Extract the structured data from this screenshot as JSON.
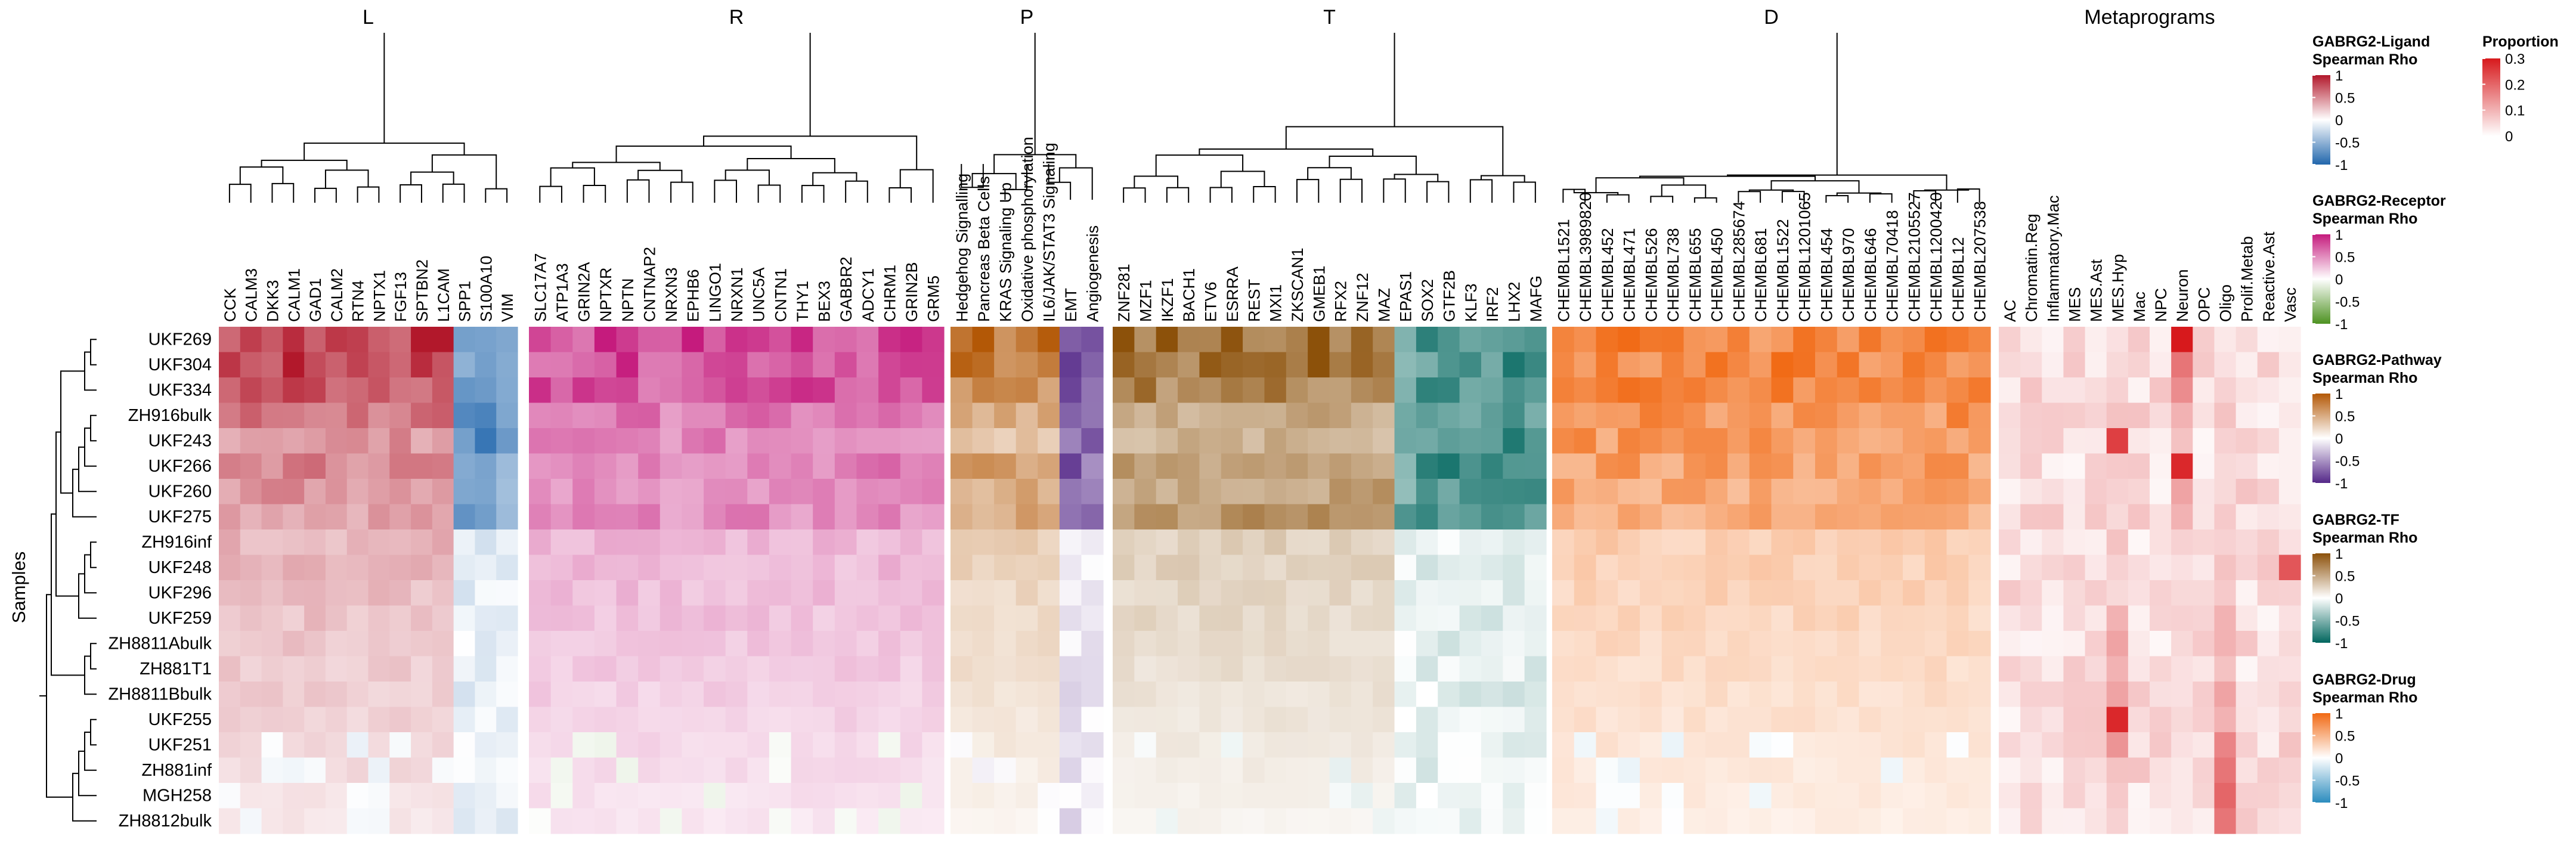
{
  "chart_data": {
    "type": "heatmap",
    "y_axis_label": "Samples",
    "samples": [
      "UKF269",
      "UKF304",
      "UKF334",
      "ZH916bulk",
      "UKF243",
      "UKF266",
      "UKF260",
      "UKF275",
      "ZH916inf",
      "UKF248",
      "UKF296",
      "UKF259",
      "ZH8811Abulk",
      "ZH881T1",
      "ZH8811Bbulk",
      "UKF255",
      "UKF251",
      "ZH881inf",
      "MGH258",
      "ZH8812bulk"
    ],
    "blocks": [
      {
        "id": "L",
        "title": "L",
        "columns": [
          "CCK",
          "CALM3",
          "DKK3",
          "CALM1",
          "GAD1",
          "CALM2",
          "RTN4",
          "NPTX1",
          "FGF13",
          "SPTBN2",
          "L1CAM",
          "SPP1",
          "S100A10",
          "VIM"
        ],
        "scale": "ligand",
        "gradient": {
          "top": [
            0.88,
            0.84,
            0.8,
            0.62,
            0.48,
            0.56,
            0.5,
            0.44
          ],
          "bottom": 0.1
        },
        "negative_columns": [
          "SPP1",
          "S100A10",
          "VIM"
        ],
        "negative_scale": [
          -0.8,
          -0.9,
          -0.7
        ]
      },
      {
        "id": "R",
        "title": "R",
        "columns": [
          "SLC17A7",
          "ATP1A3",
          "GRIN2A",
          "NPTXR",
          "NPTN",
          "CNTNAP2",
          "NRXN3",
          "EPHB6",
          "LINGO1",
          "NRXN1",
          "UNC5A",
          "CNTN1",
          "THY1",
          "BEX3",
          "GABBR2",
          "ADCY1",
          "CHRM1",
          "GRIN2B",
          "GRM5"
        ],
        "scale": "receptor",
        "gradient": {
          "top": [
            0.85,
            0.82,
            0.78,
            0.6,
            0.55,
            0.58,
            0.5,
            0.52
          ],
          "bottom": 0.1
        }
      },
      {
        "id": "P",
        "title": "P",
        "columns": [
          "Hedgehog Signalling",
          "Pancreas Beta Cells",
          "KRAS Signaling Up",
          "Oxidative phosphorylation",
          "IL6/JAK/STAT3 Signaling",
          "EMT",
          "Angiogenesis"
        ],
        "scale": "pathway",
        "gradient": {
          "top": [
            0.85,
            0.82,
            0.7,
            0.5,
            0.35,
            0.65,
            0.5,
            0.55
          ],
          "bottom": 0.05
        },
        "negative_columns": [
          "EMT",
          "Angiogenesis"
        ],
        "negative_scale": [
          -0.95,
          -0.85
        ]
      },
      {
        "id": "T",
        "title": "T",
        "columns": [
          "ZNF281",
          "MZF1",
          "IKZF1",
          "BACH1",
          "ETV6",
          "ESRRA",
          "REST",
          "MXI1",
          "ZKSCAN1",
          "GMEB1",
          "RFX2",
          "ZNF12",
          "MAZ",
          "EPAS1",
          "SOX2",
          "GTF2B",
          "KLF3",
          "IRF2",
          "LHX2",
          "MAFG"
        ],
        "scale": "tf",
        "gradient": {
          "top": [
            0.9,
            0.85,
            0.75,
            0.5,
            0.45,
            0.6,
            0.55,
            0.65
          ],
          "bottom": 0.05
        },
        "negative_columns": [
          "EPAS1",
          "SOX2",
          "GTF2B",
          "KLF3",
          "IRF2",
          "LHX2",
          "MAFG"
        ],
        "negative_scale": [
          -0.7,
          -0.85,
          -0.9,
          -0.8,
          -0.85,
          -0.9,
          -0.8
        ]
      },
      {
        "id": "D",
        "title": "D",
        "columns": [
          "CHEMBL1521",
          "CHEMBL3989820",
          "CHEMBL452",
          "CHEMBL471",
          "CHEMBL526",
          "CHEMBL738",
          "CHEMBL655",
          "CHEMBL450",
          "CHEMBL285674",
          "CHEMBL681",
          "CHEMBL1522",
          "CHEMBL1201065",
          "CHEMBL454",
          "CHEMBL970",
          "CHEMBL646",
          "CHEMBL70418",
          "CHEMBL2105527",
          "CHEMBL1200420",
          "CHEMBL12",
          "CHEMBL207538"
        ],
        "scale": "drug",
        "gradient": {
          "top": [
            0.85,
            0.83,
            0.8,
            0.74,
            0.7,
            0.66,
            0.6,
            0.58
          ],
          "bottom": 0.1
        }
      },
      {
        "id": "Metaprograms",
        "title": "Metaprograms",
        "columns": [
          "AC",
          "Chromatin.Reg",
          "Inflammatory.Mac",
          "MES",
          "MES.Ast",
          "MES.Hyp",
          "Mac",
          "NPC",
          "Neuron",
          "OPC",
          "Oligo",
          "Prolif.Metab",
          "Reactive.Ast",
          "Vasc"
        ],
        "scale": "proportion"
      }
    ],
    "legends": [
      {
        "title": [
          "GABRG2-Ligand",
          "Spearman Rho"
        ],
        "scale": "ligand",
        "ticks": [
          "1",
          "0.5",
          "0",
          "-0.5",
          "-1"
        ],
        "range": [
          -1,
          1
        ]
      },
      {
        "title": [
          "GABRG2-Receptor",
          "Spearman Rho"
        ],
        "scale": "receptor",
        "ticks": [
          "1",
          "0.5",
          "0",
          "-0.5",
          "-1"
        ],
        "range": [
          -1,
          1
        ]
      },
      {
        "title": [
          "GABRG2-Pathway",
          "Spearman Rho"
        ],
        "scale": "pathway",
        "ticks": [
          "1",
          "0.5",
          "0",
          "-0.5",
          "-1"
        ],
        "range": [
          -1,
          1
        ]
      },
      {
        "title": [
          "GABRG2-TF",
          "Spearman Rho"
        ],
        "scale": "tf",
        "ticks": [
          "1",
          "0.5",
          "0",
          "-0.5",
          "-1"
        ],
        "range": [
          -1,
          1
        ]
      },
      {
        "title": [
          "GABRG2-Drug",
          "Spearman Rho"
        ],
        "scale": "drug",
        "ticks": [
          "1",
          "0.5",
          "0",
          "-0.5",
          "-1"
        ],
        "range": [
          -1,
          1
        ]
      },
      {
        "title": [
          "Proportion"
        ],
        "scale": "proportion",
        "ticks": [
          "0.3",
          "0.2",
          "0.1",
          "0"
        ],
        "range": [
          0,
          0.3
        ]
      }
    ],
    "colors": {
      "ligand": {
        "neg": "#2166ac",
        "mid": "#ffffff",
        "pos": "#b2182b"
      },
      "receptor": {
        "neg": "#4d9221",
        "mid": "#ffffff",
        "pos": "#c51b7d"
      },
      "pathway": {
        "neg": "#542788",
        "mid": "#ffffff",
        "pos": "#b35806"
      },
      "tf": {
        "neg": "#01665e",
        "mid": "#ffffff",
        "pos": "#8c510a"
      },
      "drug": {
        "neg": "#2b8cbe",
        "mid": "#ffffff",
        "pos": "#f16913"
      },
      "proportion": {
        "low": "#ffffff",
        "high": "#d7191c"
      }
    },
    "metaprogram_highlights": {
      "Neuron": [
        0.3,
        0.18,
        0.15,
        0.1,
        0.08,
        0.28,
        0.12,
        0.1,
        0.06,
        0.04,
        0.05,
        0.06,
        0.05,
        0.04,
        0.04,
        0.05,
        0.04,
        0.03,
        0.03,
        0.03
      ],
      "MES.Hyp": [
        0.04,
        0.05,
        0.06,
        0.08,
        0.25,
        0.07,
        0.06,
        0.05,
        0.08,
        0.06,
        0.05,
        0.1,
        0.12,
        0.1,
        0.12,
        0.28,
        0.14,
        0.08,
        0.07,
        0.06
      ],
      "Oligo": [
        0.03,
        0.04,
        0.06,
        0.08,
        0.06,
        0.05,
        0.05,
        0.07,
        0.06,
        0.08,
        0.07,
        0.1,
        0.1,
        0.08,
        0.12,
        0.1,
        0.16,
        0.18,
        0.2,
        0.18
      ],
      "Vasc": [
        0.02,
        0.03,
        0.02,
        0.03,
        0.02,
        0.02,
        0.02,
        0.03,
        0.04,
        0.22,
        0.06,
        0.04,
        0.05,
        0.04,
        0.06,
        0.05,
        0.08,
        0.06,
        0.05,
        0.04
      ]
    }
  }
}
